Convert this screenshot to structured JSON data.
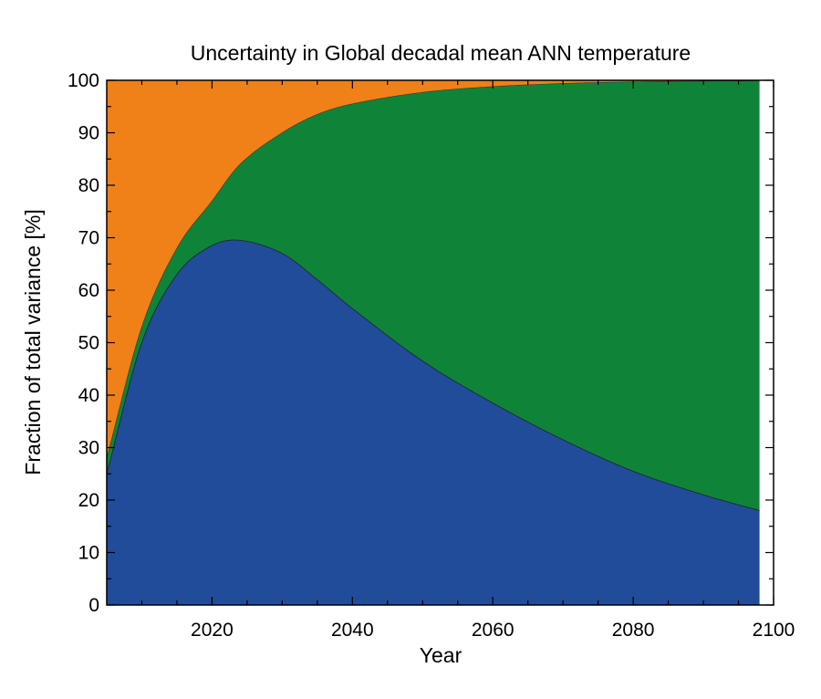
{
  "chart_data": {
    "type": "area",
    "stacked": true,
    "title": "Uncertainty in Global decadal mean ANN temperature",
    "xlabel": "Year",
    "ylabel": "Fraction of total variance  [%]",
    "xlim": [
      2005,
      2100
    ],
    "ylim": [
      0,
      100
    ],
    "x_data_end": 2098,
    "x_ticks": [
      2020,
      2040,
      2060,
      2080,
      2100
    ],
    "y_ticks": [
      0,
      10,
      20,
      30,
      40,
      50,
      60,
      70,
      80,
      90,
      100
    ],
    "x_minor_step": 5,
    "y_minor_step": 5,
    "grid": false,
    "colors": {
      "blue": "#204c9a",
      "green": "#0f8439",
      "orange": "#f08018"
    },
    "x": [
      2005,
      2010,
      2015,
      2020,
      2024,
      2030,
      2035,
      2040,
      2050,
      2060,
      2070,
      2080,
      2090,
      2098
    ],
    "boundaries": {
      "blue_top": [
        25,
        50,
        63,
        68.5,
        69.5,
        67,
        62,
        56.5,
        46.5,
        38.5,
        31.5,
        25.5,
        21,
        18
      ],
      "green_top": [
        28,
        53,
        68,
        77,
        84,
        90,
        93.5,
        95.5,
        97.7,
        98.8,
        99.4,
        99.7,
        99.85,
        99.9
      ]
    }
  }
}
